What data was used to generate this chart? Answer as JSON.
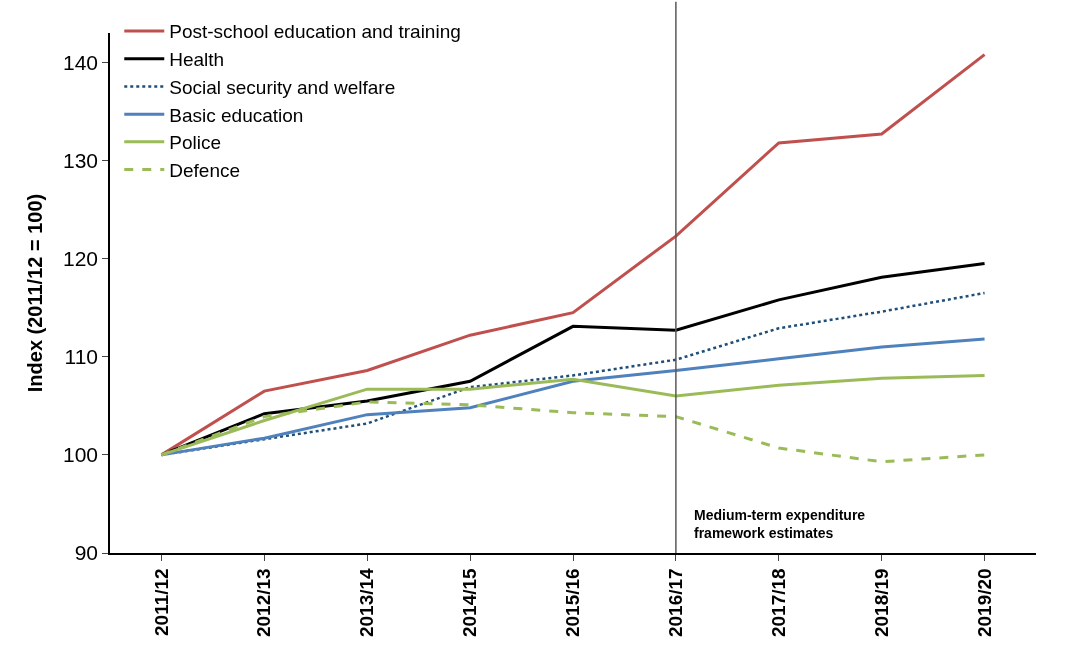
{
  "chart_data": {
    "type": "line",
    "ylabel": "Index (2011/12 = 100)",
    "categories": [
      "2011/12",
      "2012/13",
      "2013/14",
      "2014/15",
      "2015/16",
      "2016/17",
      "2017/18",
      "2018/19",
      "2019/20"
    ],
    "series": [
      {
        "name": "Post-school education and training",
        "color": "#c0504d",
        "line_style": "solid",
        "values": [
          100,
          106.5,
          108.6,
          112.2,
          114.5,
          122.3,
          131.8,
          132.7,
          140.8
        ]
      },
      {
        "name": "Health",
        "color": "#000000",
        "line_style": "solid",
        "values": [
          100,
          104.2,
          105.5,
          107.5,
          113.1,
          112.7,
          115.8,
          118.1,
          119.5
        ]
      },
      {
        "name": "Social security and welfare",
        "color": "#1f4e79",
        "line_style": "dotted",
        "values": [
          100,
          101.6,
          103.2,
          106.9,
          108.1,
          109.7,
          112.9,
          114.6,
          116.5
        ]
      },
      {
        "name": "Basic education",
        "color": "#4f81bd",
        "line_style": "solid",
        "values": [
          100,
          101.7,
          104.1,
          104.8,
          107.5,
          108.6,
          109.8,
          111.0,
          111.8
        ]
      },
      {
        "name": "Police",
        "color": "#9bbb59",
        "line_style": "solid",
        "values": [
          100,
          103.5,
          106.7,
          106.7,
          107.7,
          106.0,
          107.1,
          107.8,
          108.1
        ]
      },
      {
        "name": "Defence",
        "color": "#9bbb59",
        "line_style": "dashed",
        "values": [
          100,
          103.9,
          105.4,
          105.1,
          104.3,
          103.9,
          100.7,
          99.3,
          100.0
        ]
      }
    ],
    "ylim": [
      90,
      143
    ],
    "yticks": [
      90,
      100,
      110,
      120,
      130,
      140
    ],
    "ref_lines": [
      {
        "axis": "x",
        "value": "2016/17",
        "color": "#595959"
      }
    ],
    "annotations": [
      {
        "text": "Medium-term expenditure framework estimates",
        "x": "2016/17",
        "y": 93
      }
    ],
    "legend": "top left",
    "marker": "none"
  }
}
